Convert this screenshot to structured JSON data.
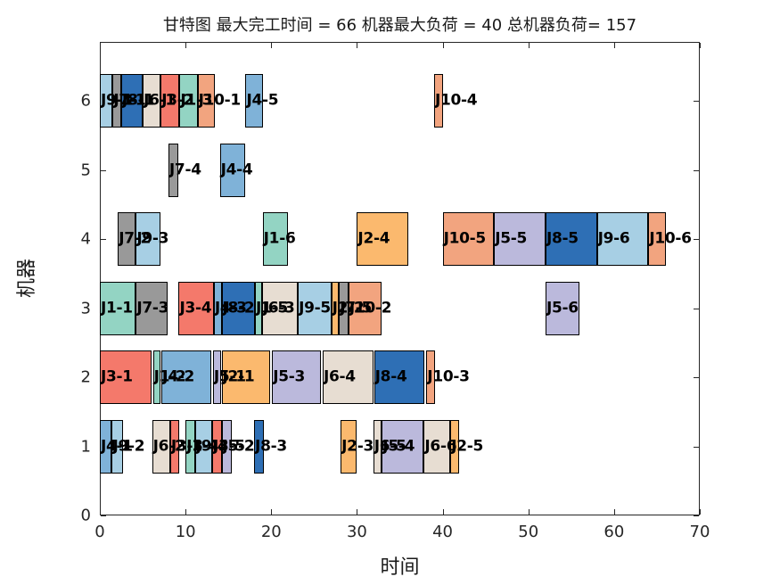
{
  "title": "甘特图 最大完工时间 = 66 机器最大负荷 = 40 总机器负荷= 157",
  "axes": {
    "xlabel": "时间",
    "ylabel": "机器",
    "x_ticks": [
      0,
      10,
      20,
      30,
      40,
      50,
      60,
      70
    ],
    "y_ticks": [
      0,
      1,
      2,
      3,
      4,
      5,
      6
    ],
    "xlim": [
      0,
      70
    ],
    "ylim": [
      0,
      6.85
    ]
  },
  "job_colors": {
    "J1": "#93D4C3",
    "J2": "#FBB96E",
    "J3": "#F4796B",
    "J4": "#7FB2D8",
    "J5": "#BBB9DC",
    "J6": "#E7DDD2",
    "J7": "#999999",
    "J8": "#2E6FB5",
    "J9": "#A7CFE4",
    "J10": "#F2A47F"
  },
  "chart_data": {
    "type": "bar",
    "subtype": "gantt",
    "makespan": 66,
    "machine_max_load": 40,
    "total_machine_load": 157,
    "bars": [
      {
        "machine": 6,
        "label": "J9-1",
        "job": "J9",
        "start": 0,
        "end": 1.5
      },
      {
        "machine": 6,
        "label": "J7-1",
        "job": "J7",
        "start": 1.5,
        "end": 2.5
      },
      {
        "machine": 6,
        "label": "J8-1",
        "job": "J8",
        "start": 2.5,
        "end": 5
      },
      {
        "machine": 6,
        "label": "J6-1",
        "job": "J6",
        "start": 5,
        "end": 7.1
      },
      {
        "machine": 6,
        "label": "J3-2",
        "job": "J3",
        "start": 7.1,
        "end": 9.3
      },
      {
        "machine": 6,
        "label": "J1-3",
        "job": "J1",
        "start": 9.3,
        "end": 11.4
      },
      {
        "machine": 6,
        "label": "J10-1",
        "job": "J10",
        "start": 11.4,
        "end": 13.4
      },
      {
        "machine": 6,
        "label": "J4-5",
        "job": "J4",
        "start": 17,
        "end": 19
      },
      {
        "machine": 6,
        "label": "J10-4",
        "job": "J10",
        "start": 39,
        "end": 40
      },
      {
        "machine": 5,
        "label": "J7-4",
        "job": "J7",
        "start": 8,
        "end": 9.2
      },
      {
        "machine": 5,
        "label": "J4-4",
        "job": "J4",
        "start": 14,
        "end": 17
      },
      {
        "machine": 4,
        "label": "J7-2",
        "job": "J7",
        "start": 2.1,
        "end": 4.2
      },
      {
        "machine": 4,
        "label": "J9-3",
        "job": "J9",
        "start": 4.2,
        "end": 7.1
      },
      {
        "machine": 4,
        "label": "J1-6",
        "job": "J1",
        "start": 19,
        "end": 22
      },
      {
        "machine": 4,
        "label": "J2-4",
        "job": "J2",
        "start": 30,
        "end": 36
      },
      {
        "machine": 4,
        "label": "J10-5",
        "job": "J10",
        "start": 40,
        "end": 46
      },
      {
        "machine": 4,
        "label": "J5-5",
        "job": "J5",
        "start": 46,
        "end": 52
      },
      {
        "machine": 4,
        "label": "J8-5",
        "job": "J8",
        "start": 52,
        "end": 58
      },
      {
        "machine": 4,
        "label": "J9-6",
        "job": "J9",
        "start": 58,
        "end": 64
      },
      {
        "machine": 4,
        "label": "J10-6",
        "job": "J10",
        "start": 64,
        "end": 66
      },
      {
        "machine": 3,
        "label": "J1-1",
        "job": "J1",
        "start": 0,
        "end": 4.2
      },
      {
        "machine": 3,
        "label": "J7-3",
        "job": "J7",
        "start": 4.2,
        "end": 7.9
      },
      {
        "machine": 3,
        "label": "J3-4",
        "job": "J3",
        "start": 9.2,
        "end": 13.3
      },
      {
        "machine": 3,
        "label": "J4-3",
        "job": "J4",
        "start": 13.3,
        "end": 14.2
      },
      {
        "machine": 3,
        "label": "J8-2",
        "job": "J8",
        "start": 14.2,
        "end": 18.1
      },
      {
        "machine": 3,
        "label": "J1-5",
        "job": "J1",
        "start": 18.1,
        "end": 18.9
      },
      {
        "machine": 3,
        "label": "J6-3",
        "job": "J6",
        "start": 18.9,
        "end": 23.1
      },
      {
        "machine": 3,
        "label": "J9-5",
        "job": "J9",
        "start": 23.1,
        "end": 27
      },
      {
        "machine": 3,
        "label": "J2-2",
        "job": "J2",
        "start": 27,
        "end": 27.9
      },
      {
        "machine": 3,
        "label": "J7-5",
        "job": "J7",
        "start": 27.9,
        "end": 29
      },
      {
        "machine": 3,
        "label": "J10-2",
        "job": "J10",
        "start": 29,
        "end": 32.9
      },
      {
        "machine": 3,
        "label": "J5-6",
        "job": "J5",
        "start": 52,
        "end": 56
      },
      {
        "machine": 2,
        "label": "J3-1",
        "job": "J3",
        "start": 0,
        "end": 6
      },
      {
        "machine": 2,
        "label": "J1-2",
        "job": "J1",
        "start": 6.2,
        "end": 7.1
      },
      {
        "machine": 2,
        "label": "J4-2",
        "job": "J4",
        "start": 7.2,
        "end": 13
      },
      {
        "machine": 2,
        "label": "J5-1",
        "job": "J5",
        "start": 13.2,
        "end": 14.1
      },
      {
        "machine": 2,
        "label": "J2-1",
        "job": "J2",
        "start": 14.2,
        "end": 19.9
      },
      {
        "machine": 2,
        "label": "J5-3",
        "job": "J5",
        "start": 20.1,
        "end": 25.8
      },
      {
        "machine": 2,
        "label": "J6-4",
        "job": "J6",
        "start": 26,
        "end": 31.9
      },
      {
        "machine": 2,
        "label": "J8-4",
        "job": "J8",
        "start": 32,
        "end": 37.9
      },
      {
        "machine": 2,
        "label": "J10-3",
        "job": "J10",
        "start": 38.1,
        "end": 39.1
      },
      {
        "machine": 1,
        "label": "J4-1",
        "job": "J4",
        "start": 0,
        "end": 1.4
      },
      {
        "machine": 1,
        "label": "J9-2",
        "job": "J9",
        "start": 1.4,
        "end": 2.7
      },
      {
        "machine": 1,
        "label": "J6-2",
        "job": "J6",
        "start": 6.1,
        "end": 8.2
      },
      {
        "machine": 1,
        "label": "J3-3",
        "job": "J3",
        "start": 8.2,
        "end": 9.3
      },
      {
        "machine": 1,
        "label": "J1-4",
        "job": "J1",
        "start": 10,
        "end": 11.1
      },
      {
        "machine": 1,
        "label": "J9-4",
        "job": "J9",
        "start": 11.1,
        "end": 13.1
      },
      {
        "machine": 1,
        "label": "J3-5",
        "job": "J3",
        "start": 13.1,
        "end": 14.2
      },
      {
        "machine": 1,
        "label": "J5-2",
        "job": "J5",
        "start": 14.2,
        "end": 15.4
      },
      {
        "machine": 1,
        "label": "J8-3",
        "job": "J8",
        "start": 18,
        "end": 19.1
      },
      {
        "machine": 1,
        "label": "J2-3",
        "job": "J2",
        "start": 28.1,
        "end": 30
      },
      {
        "machine": 1,
        "label": "J6-5",
        "job": "J6",
        "start": 31.9,
        "end": 32.9
      },
      {
        "machine": 1,
        "label": "J5-4",
        "job": "J5",
        "start": 32.9,
        "end": 37.8
      },
      {
        "machine": 1,
        "label": "J6-6",
        "job": "J6",
        "start": 37.8,
        "end": 40.9
      },
      {
        "machine": 1,
        "label": "J2-5",
        "job": "J2",
        "start": 40.9,
        "end": 41.9
      }
    ]
  }
}
